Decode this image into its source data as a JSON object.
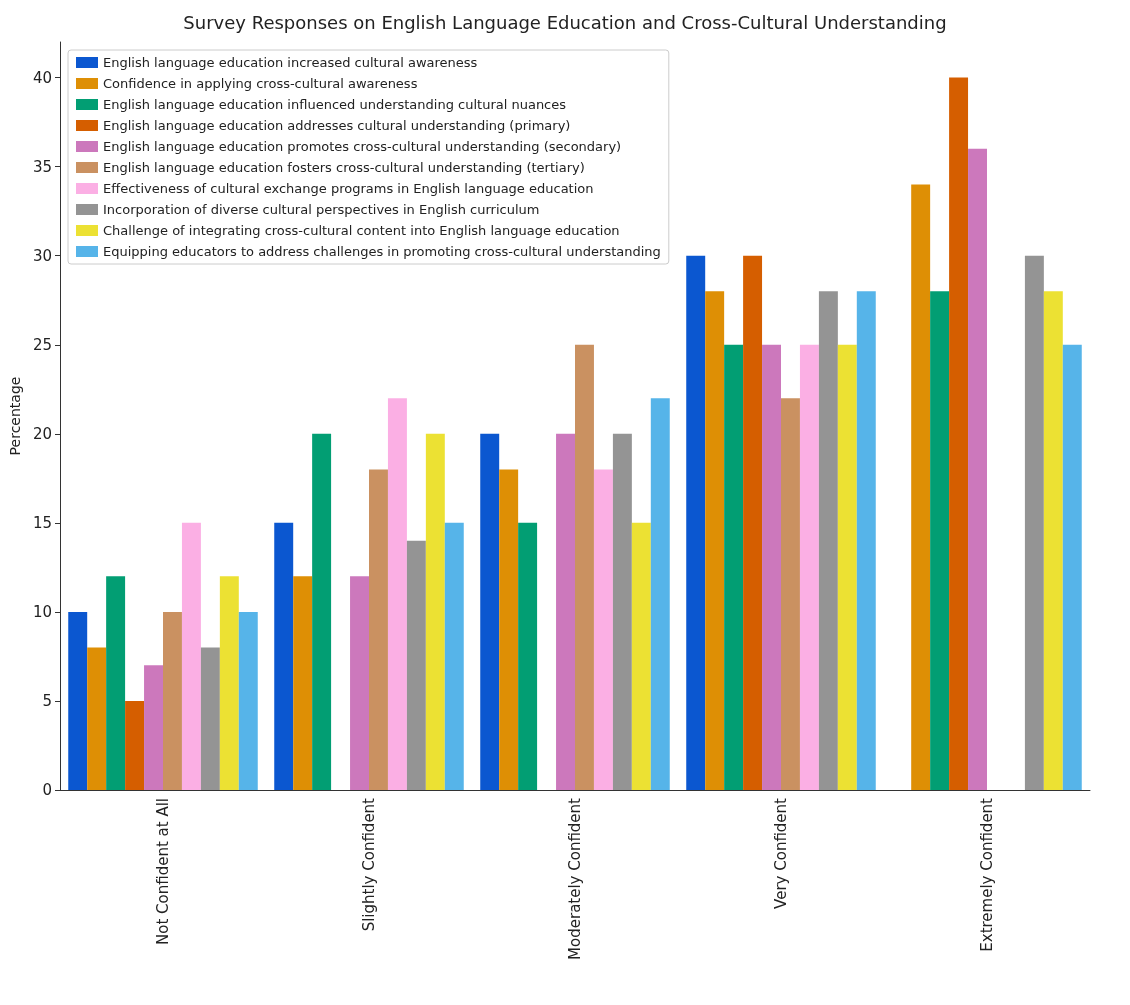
{
  "chart_data": {
    "type": "bar",
    "title": "Survey Responses on English Language Education and Cross-Cultural Understanding",
    "ylabel": "Percentage",
    "categories": [
      "Not Confident at All",
      "Slightly Confident",
      "Moderately Confident",
      "Very Confident",
      "Extremely Confident"
    ],
    "series": [
      {
        "name": "English language education increased cultural awareness",
        "color": "#0b57d0",
        "values": [
          10,
          15,
          20,
          30,
          null
        ]
      },
      {
        "name": "Confidence in applying cross-cultural awareness",
        "color": "#de8f05",
        "values": [
          8,
          12,
          18,
          28,
          34
        ]
      },
      {
        "name": "English language education influenced understanding cultural nuances",
        "color": "#029e73",
        "values": [
          12,
          20,
          15,
          25,
          28
        ]
      },
      {
        "name": "English language education addresses cultural understanding (primary)",
        "color": "#d55e00",
        "values": [
          5,
          null,
          null,
          30,
          40
        ]
      },
      {
        "name": "English language education promotes cross-cultural understanding (secondary)",
        "color": "#cc78bc",
        "values": [
          7,
          12,
          20,
          25,
          36
        ]
      },
      {
        "name": "English language education fosters cross-cultural understanding (tertiary)",
        "color": "#ca9161",
        "values": [
          10,
          18,
          25,
          22,
          null
        ]
      },
      {
        "name": "Effectiveness of cultural exchange programs in English language education",
        "color": "#fbafe4",
        "values": [
          15,
          22,
          18,
          25,
          null
        ]
      },
      {
        "name": "Incorporation of diverse cultural perspectives in English curriculum",
        "color": "#949494",
        "values": [
          8,
          14,
          20,
          28,
          30
        ]
      },
      {
        "name": "Challenge of integrating cross-cultural content into English language education",
        "color": "#ece133",
        "values": [
          12,
          20,
          15,
          25,
          28
        ]
      },
      {
        "name": "Equipping educators to address challenges in promoting cross-cultural understanding",
        "color": "#56b4e9",
        "values": [
          10,
          15,
          22,
          28,
          25
        ]
      }
    ],
    "ylim": [
      0,
      42
    ],
    "yticks": [
      0,
      5,
      10,
      15,
      20,
      25,
      30,
      35,
      40
    ],
    "legend": "top left"
  }
}
